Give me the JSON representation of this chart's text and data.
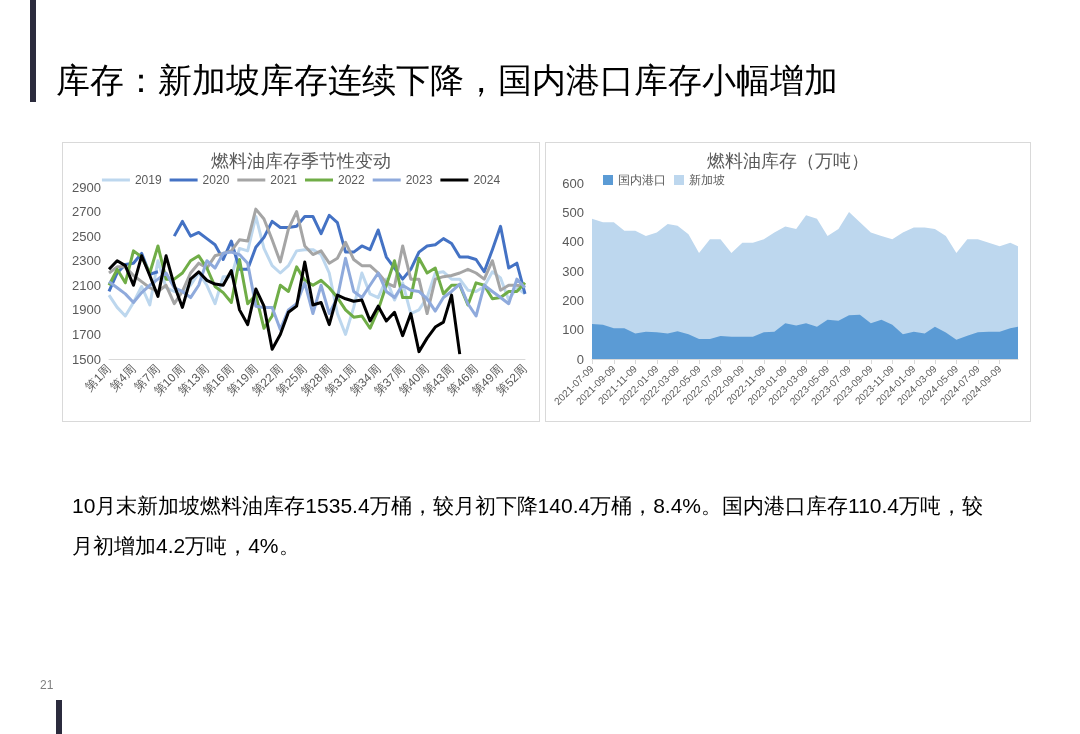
{
  "chart_data": [
    {
      "type": "line",
      "title": "燃料油库存季节性变动",
      "annotations": [
        "库存：新加坡库存连续下降，国内港口库存小幅增加"
      ],
      "categories": [
        "第1周",
        null,
        null,
        "第4周",
        null,
        null,
        "第7周",
        null,
        null,
        "第10周",
        null,
        null,
        "第13周",
        null,
        null,
        "第16周",
        null,
        null,
        "第19周",
        null,
        null,
        "第22周",
        null,
        null,
        "第25周",
        null,
        null,
        "第28周",
        null,
        null,
        "第31周",
        null,
        null,
        "第34周",
        null,
        null,
        "第37周",
        null,
        null,
        "第40周",
        null,
        null,
        "第43周",
        null,
        null,
        "第46周",
        null,
        null,
        "第49周",
        null,
        null,
        "第52周"
      ],
      "ylim": [
        1500,
        2900
      ],
      "yticks": [
        1500,
        1700,
        1900,
        2100,
        2300,
        2500,
        2700,
        2900
      ],
      "legend": "top",
      "marker": "none",
      "series": [
        {
          "name": "2019",
          "color": "#bdd7ee",
          "values": [
            2020,
            1920,
            1850,
            1960,
            2090,
            1940,
            2300,
            2080,
            2050,
            2050,
            2100,
            2200,
            2100,
            1950,
            2170,
            2170,
            2400,
            2380,
            2660,
            2400,
            2260,
            2200,
            2260,
            2380,
            2390,
            2390,
            2350,
            2200,
            1870,
            1700,
            1920,
            2200,
            2030,
            2000,
            2150,
            1980,
            2120,
            1870,
            1900,
            2000,
            2200,
            2210,
            2150,
            2150,
            2060,
            2050,
            2090,
            2210,
            2160,
            1980,
            2080,
            2030
          ]
        },
        {
          "name": "2020",
          "color": "#4472c4",
          "values": [
            2050,
            2200,
            2270,
            2280,
            2360,
            2190,
            2210,
            null,
            2500,
            2620,
            2500,
            2530,
            2480,
            2430,
            2310,
            2460,
            2230,
            2230,
            2410,
            2490,
            2620,
            2570,
            2570,
            2580,
            2660,
            2660,
            2520,
            2670,
            2610,
            2370,
            2370,
            2420,
            2390,
            2550,
            2330,
            2240,
            2150,
            2230,
            2370,
            2420,
            2430,
            2480,
            2440,
            2330,
            2330,
            2310,
            2210,
            2390,
            2580,
            2240,
            2280,
            2030
          ]
        },
        {
          "name": "2021",
          "color": "#a5a5a5",
          "values": [
            2200,
            2250,
            2250,
            2180,
            2130,
            2080,
            2050,
            2100,
            1950,
            2050,
            2200,
            2280,
            2240,
            2340,
            2360,
            2380,
            2470,
            2460,
            2720,
            2640,
            2470,
            2290,
            2560,
            2700,
            2420,
            2350,
            2380,
            2280,
            2320,
            2450,
            2310,
            2260,
            2260,
            2200,
            2120,
            2090,
            2420,
            2150,
            2150,
            1870,
            2150,
            2170,
            2180,
            2200,
            2230,
            2200,
            2150,
            2300,
            2060,
            2100,
            2100,
            2090
          ]
        },
        {
          "name": "2022",
          "color": "#70ad47",
          "values": [
            2100,
            2230,
            2120,
            2380,
            2330,
            2200,
            2420,
            2150,
            2150,
            2200,
            2300,
            2340,
            2240,
            2090,
            2040,
            1960,
            2310,
            1950,
            2020,
            1750,
            1850,
            2100,
            2050,
            2250,
            2140,
            2100,
            2140,
            2080,
            2000,
            1900,
            1840,
            1850,
            1750,
            1900,
            2100,
            2300,
            2000,
            2000,
            2320,
            2200,
            2240,
            2030,
            2100,
            2100,
            1940,
            2120,
            2100,
            1990,
            2000,
            2050,
            2050,
            2120
          ]
        },
        {
          "name": "2023",
          "color": "#8faadc",
          "values": [
            2130,
            2080,
            2030,
            1960,
            2040,
            2100,
            2150,
            2200,
            2080,
            2050,
            2000,
            2100,
            2300,
            2240,
            2360,
            2370,
            2350,
            2280,
            1930,
            1920,
            1920,
            1740,
            1900,
            1950,
            2120,
            1870,
            2100,
            1870,
            2000,
            2320,
            2050,
            2000,
            2100,
            2200,
            2050,
            2000,
            2100,
            2060,
            2050,
            1990,
            1890,
            2000,
            2050,
            2110,
            1950,
            1850,
            2100,
            2050,
            2000,
            1950,
            2150,
            2080
          ]
        },
        {
          "name": "2024",
          "color": "#000000",
          "values": [
            2230,
            2300,
            2260,
            2100,
            2340,
            2180,
            2010,
            2340,
            2100,
            1920,
            2150,
            2210,
            2140,
            2110,
            2100,
            2220,
            1900,
            1780,
            2070,
            1930,
            1580,
            1700,
            1880,
            1930,
            2290,
            1940,
            1960,
            1780,
            2020,
            1990,
            1970,
            1980,
            1810,
            1930,
            1810,
            1880,
            1690,
            1870,
            1560,
            1670,
            1760,
            1800,
            2020,
            1540,
            null,
            null,
            null,
            null,
            null,
            null,
            null,
            null
          ]
        }
      ]
    },
    {
      "type": "area",
      "title": "燃料油库存（万吨）",
      "stacked": true,
      "legend": "top left",
      "annotations": [
        "10月末新加坡燃料油库存1535.4万桶，较月初下降140.4万桶，8.4%。国内港口库存110.4万吨，较月初增加4.2万吨，4%。",
        "21"
      ],
      "x": [
        "2021-07-09",
        "2021-08-09",
        "2021-09-09",
        "2021-10-09",
        "2021-11-09",
        "2021-12-09",
        "2022-01-09",
        "2022-02-09",
        "2022-03-09",
        "2022-04-09",
        "2022-05-09",
        "2022-06-09",
        "2022-07-09",
        "2022-08-09",
        "2022-09-09",
        "2022-10-09",
        "2022-11-09",
        "2022-12-09",
        "2023-01-09",
        "2023-02-09",
        "2023-03-09",
        "2023-04-09",
        "2023-05-09",
        "2023-06-09",
        "2023-07-09",
        "2023-08-09",
        "2023-09-09",
        "2023-10-09",
        "2023-11-09",
        "2023-12-09",
        "2024-01-09",
        "2024-02-09",
        "2024-03-09",
        "2024-04-09",
        "2024-05-09",
        "2024-06-09",
        "2024-07-09",
        "2024-08-09",
        "2024-09-09",
        "2024-10-09",
        "2024-10-31"
      ],
      "xlim": [
        "2021-07-09",
        "2024-10-31"
      ],
      "xticks": [
        "2021-07-09",
        "2021-09-09",
        "2021-11-09",
        "2022-01-09",
        "2022-03-09",
        "2022-05-09",
        "2022-07-09",
        "2022-09-09",
        "2022-11-09",
        "2023-01-09",
        "2023-03-09",
        "2023-05-09",
        "2023-07-09",
        "2023-09-09",
        "2023-11-09",
        "2024-01-09",
        "2024-03-09",
        "2024-05-09",
        "2024-07-09",
        "2024-09-09"
      ],
      "ylim": [
        0,
        600
      ],
      "yticks": [
        0,
        100,
        200,
        300,
        400,
        500,
        600
      ],
      "series": [
        {
          "name": "国内港口",
          "color": "#5b9bd5",
          "values": [
            119,
            117,
            105,
            105,
            87,
            93,
            91,
            87,
            95,
            84,
            68,
            68,
            78,
            76,
            76,
            76,
            91,
            93,
            122,
            114,
            122,
            110,
            134,
            130,
            149,
            151,
            122,
            134,
            117,
            84,
            93,
            87,
            110,
            90,
            66,
            79,
            91,
            93,
            93,
            105,
            110
          ]
        },
        {
          "name": "新加坡",
          "color": "#bdd7ee",
          "values": [
            359,
            349,
            361,
            332,
            350,
            326,
            340,
            373,
            359,
            341,
            293,
            340,
            330,
            285,
            320,
            320,
            317,
            338,
            330,
            329,
            368,
            368,
            285,
            313,
            352,
            315,
            309,
            285,
            291,
            347,
            355,
            361,
            333,
            329,
            295,
            329,
            317,
            303,
            291,
            291,
            274
          ]
        }
      ]
    }
  ]
}
